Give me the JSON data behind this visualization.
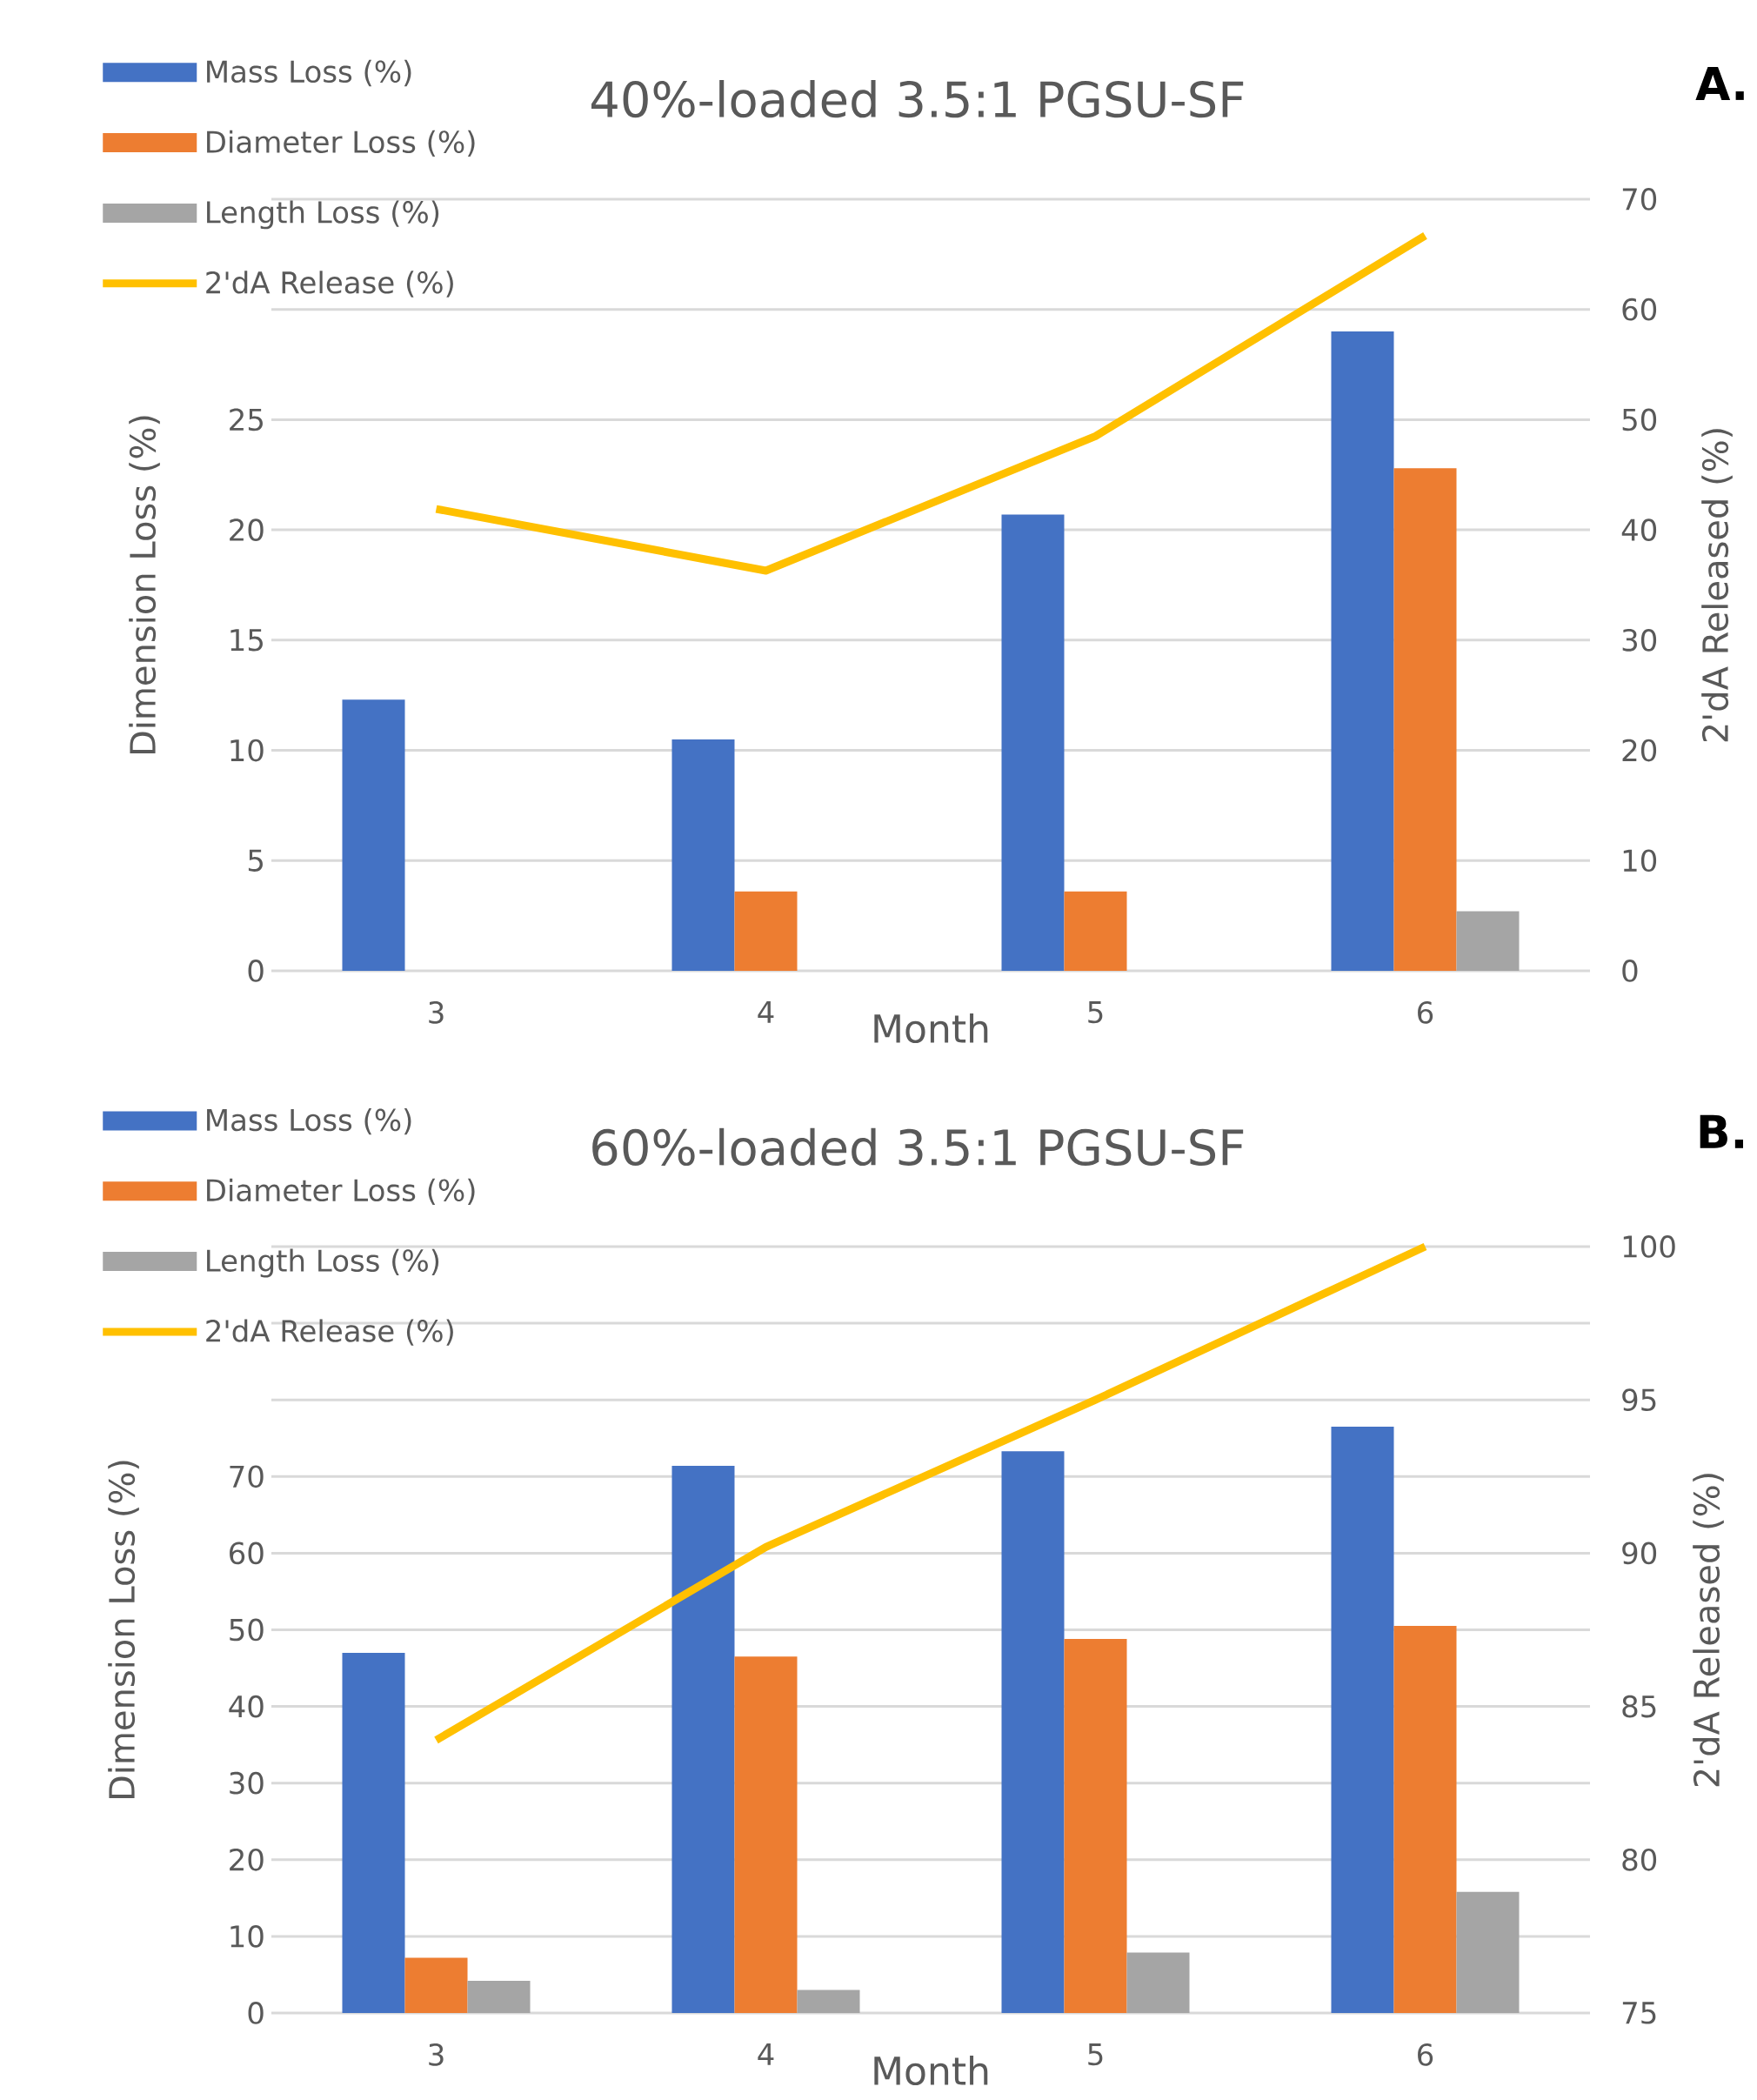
{
  "chart_data": [
    {
      "type": "bar",
      "title": "40%-loaded 3.5:1 PGSU-SF",
      "xlabel": "Month",
      "ylabel": "Dimension Loss (%)",
      "y2label": "2'dA Released (%)",
      "categories": [
        "3",
        "4",
        "5",
        "6"
      ],
      "series": [
        {
          "name": "Mass Loss (%)",
          "color": "#4472c4",
          "values": [
            12.3,
            10.5,
            20.7,
            29.0
          ]
        },
        {
          "name": "Diameter Loss (%)",
          "color": "#ed7d31",
          "values": [
            0,
            3.6,
            3.6,
            22.8
          ]
        },
        {
          "name": "Length Loss (%)",
          "color": "#a5a5a5",
          "values": [
            0,
            0,
            0,
            2.7
          ]
        },
        {
          "name": "2'dA Release (%)",
          "color": "#ffc000",
          "type": "line",
          "axis": "y2",
          "values": [
            41.9,
            36.3,
            48.5,
            66.7
          ]
        }
      ],
      "ylim": [
        0,
        35
      ],
      "yticks": [
        0,
        5,
        10,
        15,
        20,
        25,
        {
          "value": 30,
          "label": null
        },
        {
          "value": 35,
          "label": null
        }
      ],
      "y2lim": [
        0,
        70
      ],
      "y2ticks": [
        0,
        10,
        20,
        30,
        40,
        50,
        60,
        70
      ],
      "grid": "y",
      "legend": "top left",
      "annotations": [
        "A."
      ]
    },
    {
      "type": "bar",
      "title": "60%-loaded 3.5:1 PGSU-SF",
      "xlabel": "Month",
      "ylabel": "Dimension Loss (%)",
      "y2label": "2'dA Released (%)",
      "categories": [
        "3",
        "4",
        "5",
        "6"
      ],
      "series": [
        {
          "name": "Mass Loss (%)",
          "color": "#4472c4",
          "values": [
            47.0,
            71.4,
            73.3,
            76.5
          ]
        },
        {
          "name": "Diameter Loss (%)",
          "color": "#ed7d31",
          "values": [
            7.2,
            46.5,
            48.8,
            50.5
          ]
        },
        {
          "name": "Length Loss (%)",
          "color": "#a5a5a5",
          "values": [
            4.2,
            3.0,
            7.9,
            15.8
          ]
        },
        {
          "name": "2'dA Release (%)",
          "color": "#ffc000",
          "type": "line",
          "axis": "y2",
          "values": [
            83.9,
            90.2,
            95.0,
            100
          ]
        }
      ],
      "ylim": [
        0,
        100
      ],
      "yticks": [
        0,
        10,
        20,
        30,
        40,
        50,
        60,
        70,
        {
          "value": 80,
          "label": null
        },
        {
          "value": 90,
          "label": null
        },
        {
          "value": 100,
          "label": null
        }
      ],
      "y2lim": [
        75,
        100
      ],
      "y2ticks": [
        75,
        80,
        85,
        90,
        95,
        100
      ],
      "grid": "y",
      "legend": "top left",
      "annotations": [
        "B."
      ]
    }
  ]
}
